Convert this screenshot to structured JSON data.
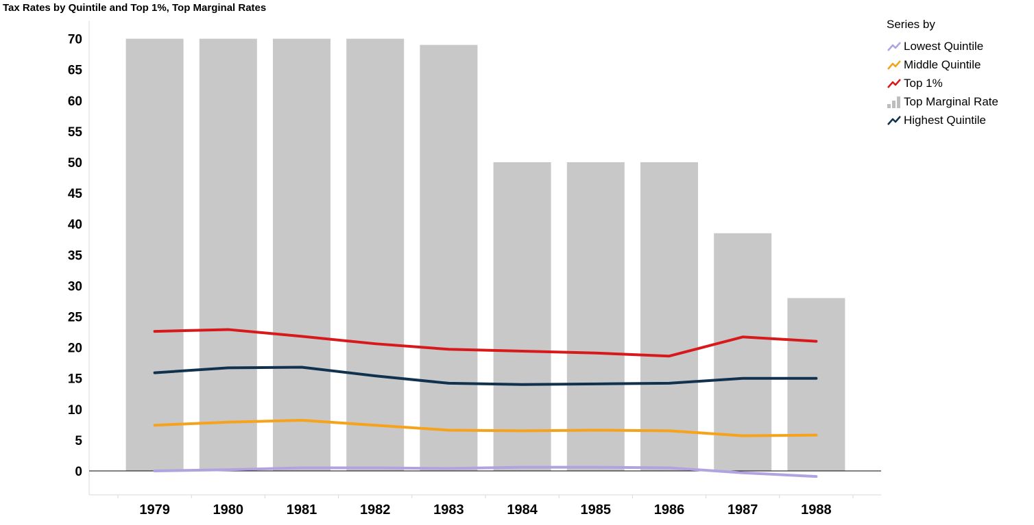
{
  "chart_data": {
    "type": "bar",
    "title": "Tax Rates by Quintile and Top 1%, Top Marginal Rates",
    "xlabel": "",
    "ylabel": "",
    "categories": [
      "1979",
      "1980",
      "1981",
      "1982",
      "1983",
      "1984",
      "1985",
      "1986",
      "1987",
      "1988"
    ],
    "ylim": [
      -4,
      73
    ],
    "yticks": [
      "0",
      "5",
      "10",
      "15",
      "20",
      "25",
      "30",
      "35",
      "40",
      "45",
      "50",
      "55",
      "60",
      "65",
      "70"
    ],
    "series": [
      {
        "name": "Top Marginal Rate",
        "kind": "bar",
        "color": "#c8c8c8",
        "values": [
          70,
          70,
          70,
          70,
          69,
          50,
          50,
          50,
          38.5,
          28
        ]
      },
      {
        "name": "Top 1%",
        "kind": "line",
        "color": "#d7191c",
        "values": [
          22.6,
          22.9,
          21.8,
          20.6,
          19.7,
          19.4,
          19.1,
          18.6,
          21.7,
          21.0
        ]
      },
      {
        "name": "Highest Quintile",
        "kind": "line",
        "color": "#11324f",
        "values": [
          15.9,
          16.7,
          16.8,
          15.4,
          14.2,
          14.0,
          14.1,
          14.2,
          15.0,
          15.0
        ]
      },
      {
        "name": "Middle Quintile",
        "kind": "line",
        "color": "#f7a21b",
        "values": [
          7.4,
          7.9,
          8.2,
          7.4,
          6.6,
          6.5,
          6.6,
          6.5,
          5.7,
          5.8
        ]
      },
      {
        "name": "Lowest Quintile",
        "kind": "line",
        "color": "#b0a3e0",
        "values": [
          0.0,
          0.2,
          0.5,
          0.5,
          0.4,
          0.6,
          0.6,
          0.5,
          -0.3,
          -0.9
        ]
      }
    ],
    "legend": {
      "title": "Series by",
      "position": "top-right",
      "items": [
        "Lowest Quintile",
        "Middle Quintile",
        "Top 1%",
        "Top Marginal Rate",
        "Highest Quintile"
      ]
    },
    "grid": false
  }
}
